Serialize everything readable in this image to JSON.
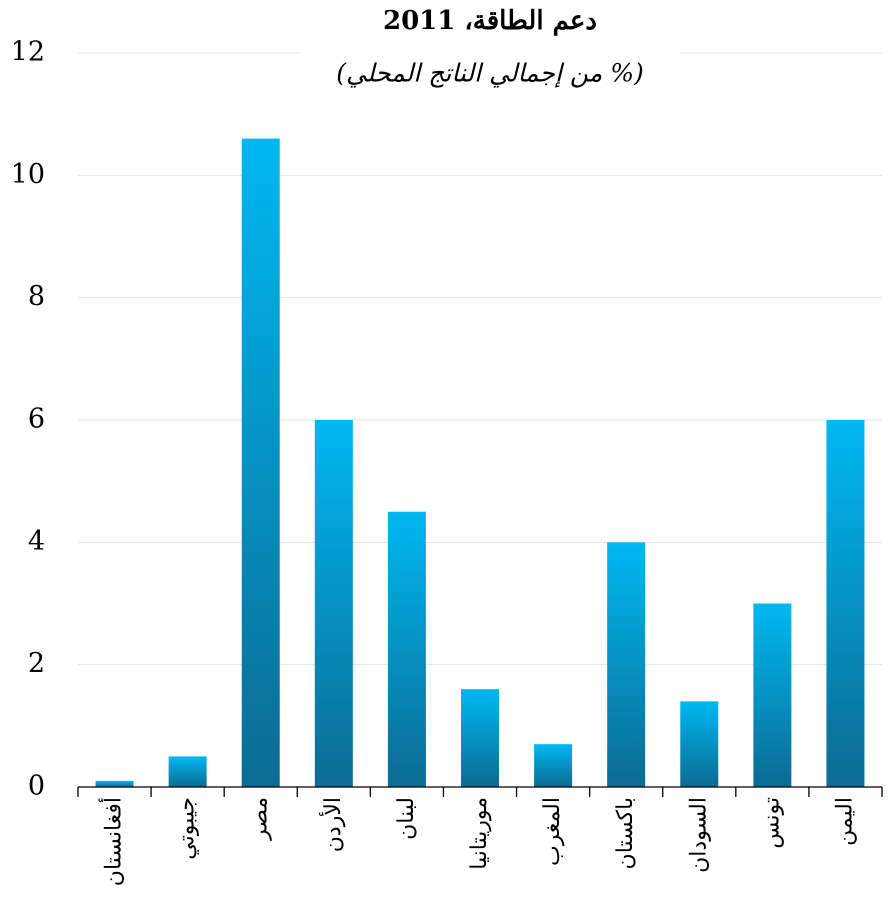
{
  "chart_data": {
    "type": "bar",
    "title": "دعم الطاقة، 2011",
    "subtitle": "(% من إجمالي الناتج المحلي)",
    "categories": [
      "أفغانستان",
      "جيبوتي",
      "مصر",
      "الأردن",
      "لبنان",
      "موريتانيا",
      "المغرب",
      "باكستان",
      "السودان",
      "تونس",
      "اليمن"
    ],
    "values": [
      0.1,
      0.5,
      10.6,
      6,
      4.5,
      1.6,
      0.7,
      4,
      1.4,
      3,
      6
    ],
    "color": {
      "top": "#00b8f2",
      "bottom": "#0b6b93"
    },
    "ylim": [
      0,
      12
    ],
    "yticks": [
      0,
      2,
      4,
      6,
      8,
      10,
      12
    ],
    "grid": true
  }
}
